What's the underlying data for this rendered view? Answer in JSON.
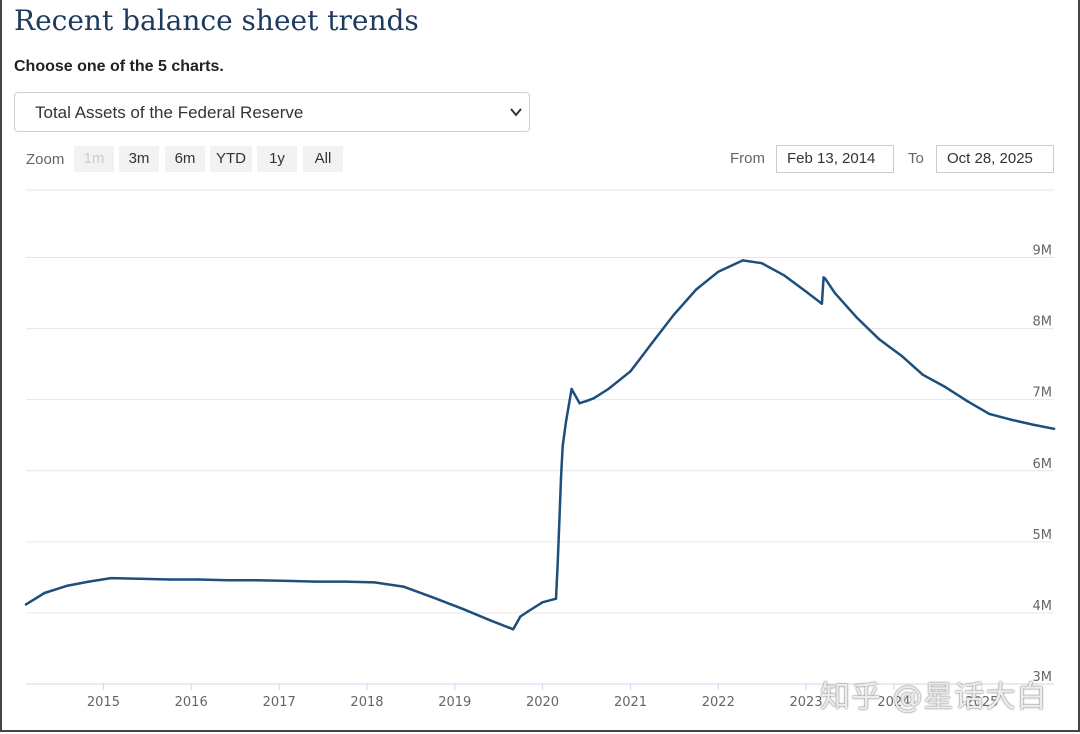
{
  "header": {
    "title": "Recent balance sheet trends",
    "prompt": "Choose one of the 5 charts."
  },
  "chart_select": {
    "selected": "Total Assets of the Federal Reserve"
  },
  "zoom": {
    "label": "Zoom",
    "buttons": [
      "1m",
      "3m",
      "6m",
      "YTD",
      "1y",
      "All"
    ],
    "disabled": [
      "1m"
    ]
  },
  "range": {
    "from_label": "From",
    "from_value": "Feb 13, 2014",
    "to_label": "To",
    "to_value": "Oct 28, 2025"
  },
  "watermark": "知乎 @星话大白",
  "colors": {
    "line": "#1c4f7c",
    "grid": "#e6e6e6"
  },
  "chart_data": {
    "type": "line",
    "title": "",
    "xlabel": "",
    "ylabel": "",
    "ylim": [
      3,
      9.95
    ],
    "xlim": [
      "2014-02-13",
      "2025-10-28"
    ],
    "y_unit": "M",
    "grid": true,
    "yticks": [
      "3M",
      "4M",
      "5M",
      "6M",
      "7M",
      "8M",
      "9M"
    ],
    "xticks": [
      "2015",
      "2016",
      "2017",
      "2018",
      "2019",
      "2020",
      "2021",
      "2022",
      "2023",
      "2024",
      "2025"
    ],
    "x": [
      "2014-02-13",
      "2014-05-01",
      "2014-08-01",
      "2014-11-01",
      "2015-02-01",
      "2015-06-01",
      "2015-10-01",
      "2016-02-01",
      "2016-06-01",
      "2016-10-01",
      "2017-02-01",
      "2017-06-01",
      "2017-10-01",
      "2018-02-01",
      "2018-06-01",
      "2018-10-01",
      "2019-02-01",
      "2019-06-01",
      "2019-09-01",
      "2019-10-01",
      "2019-11-01",
      "2020-01-01",
      "2020-02-26",
      "2020-03-04",
      "2020-03-11",
      "2020-03-18",
      "2020-03-25",
      "2020-04-08",
      "2020-05-01",
      "2020-06-03",
      "2020-07-01",
      "2020-08-01",
      "2020-10-01",
      "2021-01-01",
      "2021-04-01",
      "2021-07-01",
      "2021-10-01",
      "2022-01-01",
      "2022-04-13",
      "2022-07-01",
      "2022-10-01",
      "2023-01-01",
      "2023-03-08",
      "2023-03-15",
      "2023-03-22",
      "2023-05-01",
      "2023-08-01",
      "2023-11-01",
      "2024-02-01",
      "2024-05-01",
      "2024-08-01",
      "2024-11-01",
      "2025-02-01",
      "2025-05-01",
      "2025-08-01",
      "2025-10-28"
    ],
    "series": [
      {
        "values": [
          4.12,
          4.28,
          4.38,
          4.44,
          4.49,
          4.48,
          4.47,
          4.47,
          4.46,
          4.46,
          4.45,
          4.44,
          4.44,
          4.43,
          4.37,
          4.22,
          4.06,
          3.89,
          3.77,
          3.95,
          4.02,
          4.15,
          4.2,
          4.7,
          5.3,
          5.9,
          6.35,
          6.7,
          7.15,
          6.95,
          6.98,
          7.02,
          7.15,
          7.4,
          7.8,
          8.2,
          8.55,
          8.8,
          8.96,
          8.92,
          8.75,
          8.52,
          8.35,
          8.72,
          8.7,
          8.5,
          8.15,
          7.85,
          7.62,
          7.35,
          7.18,
          6.98,
          6.8,
          6.72,
          6.65,
          6.59
        ]
      }
    ]
  }
}
